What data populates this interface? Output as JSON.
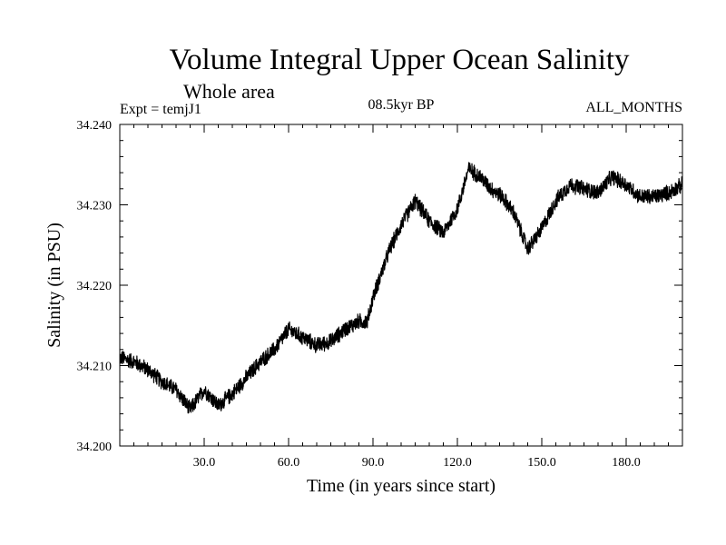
{
  "header": {
    "title": "Volume Integral Upper Ocean Salinity",
    "subtitle": "Whole area",
    "expt": "Expt = temjJ1",
    "period": "08.5kyr BP",
    "months": "ALL_MONTHS"
  },
  "chart_data": {
    "type": "line",
    "title": "Volume Integral Upper Ocean Salinity",
    "subtitle": "Whole area",
    "xlabel": "Time (in years since start)",
    "ylabel": "Salinity (in PSU)",
    "xlim": [
      0,
      200
    ],
    "ylim": [
      34.2,
      34.24
    ],
    "xticks": [
      30,
      60,
      90,
      120,
      150,
      180
    ],
    "xtick_labels": [
      "30.0",
      "60.0",
      "90.0",
      "120.0",
      "150.0",
      "180.0"
    ],
    "yticks": [
      34.2,
      34.21,
      34.22,
      34.23,
      34.24
    ],
    "ytick_labels": [
      "34.200",
      "34.210",
      "34.220",
      "34.230",
      "34.240"
    ],
    "grid": false,
    "series": [
      {
        "name": "Salinity",
        "x": [
          0,
          5,
          10,
          15,
          20,
          25,
          30,
          35,
          40,
          45,
          50,
          55,
          60,
          65,
          70,
          75,
          80,
          85,
          88,
          90,
          93,
          96,
          100,
          105,
          110,
          115,
          120,
          124,
          128,
          132,
          136,
          140,
          145,
          150,
          155,
          160,
          165,
          170,
          175,
          180,
          185,
          190,
          195,
          200
        ],
        "values": [
          34.211,
          34.2105,
          34.2095,
          34.208,
          34.207,
          34.2045,
          34.207,
          34.205,
          34.2065,
          34.2085,
          34.2105,
          34.212,
          34.2145,
          34.2135,
          34.2125,
          34.213,
          34.2145,
          34.2155,
          34.2155,
          34.2185,
          34.2215,
          34.2245,
          34.2275,
          34.2305,
          34.228,
          34.2265,
          34.2295,
          34.2345,
          34.2335,
          34.232,
          34.231,
          34.229,
          34.2245,
          34.227,
          34.2305,
          34.2325,
          34.232,
          34.2315,
          34.2335,
          34.2325,
          34.231,
          34.231,
          34.2315,
          34.2325
        ]
      }
    ],
    "noise_amplitude": 0.0011
  }
}
